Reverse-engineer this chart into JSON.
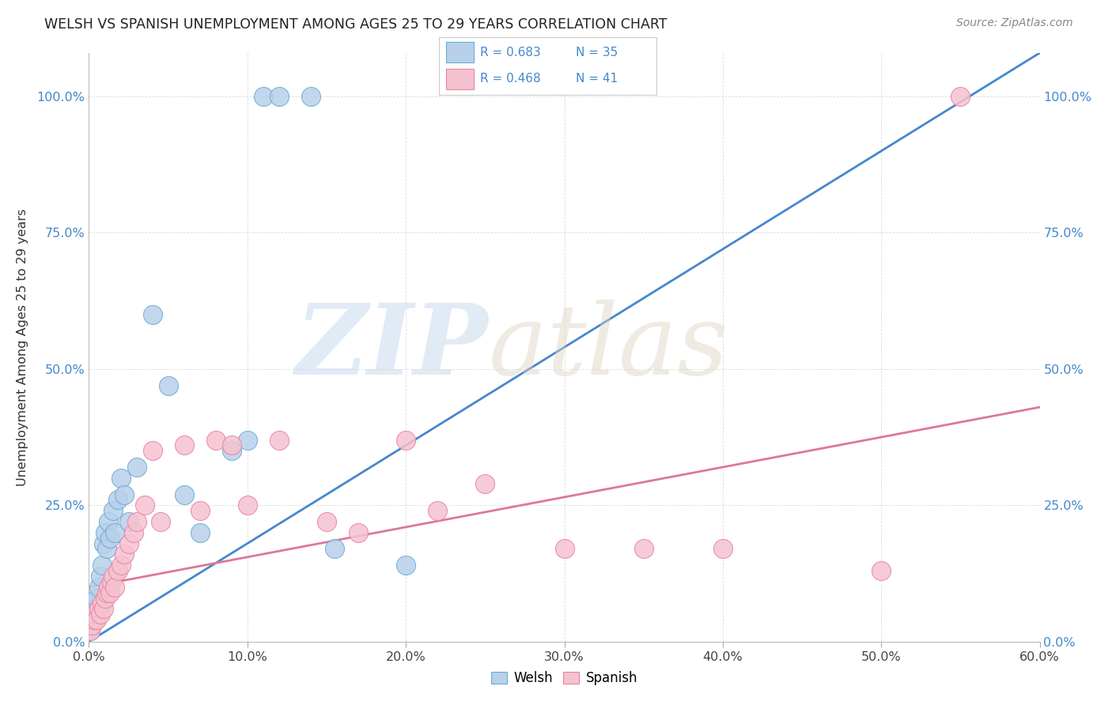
{
  "title": "WELSH VS SPANISH UNEMPLOYMENT AMONG AGES 25 TO 29 YEARS CORRELATION CHART",
  "source": "Source: ZipAtlas.com",
  "ylabel": "Unemployment Among Ages 25 to 29 years",
  "xlim": [
    0.0,
    0.6
  ],
  "ylim": [
    0.0,
    1.08
  ],
  "x_tick_vals": [
    0.0,
    0.1,
    0.2,
    0.3,
    0.4,
    0.5,
    0.6
  ],
  "x_tick_labels": [
    "0.0%",
    "10.0%",
    "20.0%",
    "30.0%",
    "40.0%",
    "50.0%",
    "60.0%"
  ],
  "y_tick_vals": [
    0.0,
    0.25,
    0.5,
    0.75,
    1.0
  ],
  "y_tick_labels": [
    "0.0%",
    "25.0%",
    "50.0%",
    "75.0%",
    "100.0%"
  ],
  "welsh_R": 0.683,
  "welsh_N": 35,
  "spanish_R": 0.468,
  "spanish_N": 41,
  "welsh_dot_color": "#b8d0ea",
  "welsh_edge_color": "#6aaad4",
  "spanish_dot_color": "#f5c2d0",
  "spanish_edge_color": "#e882a4",
  "welsh_line_color": "#4488cc",
  "spanish_line_color": "#dd7799",
  "legend_color": "#4488cc",
  "title_color": "#222222",
  "source_color": "#888888",
  "background_color": "#ffffff",
  "grid_color": "#dddddd",
  "welsh_line_x0": 0.0,
  "welsh_line_y0": 0.0,
  "welsh_line_x1": 0.6,
  "welsh_line_y1": 1.08,
  "spanish_line_x0": 0.0,
  "spanish_line_y0": 0.1,
  "spanish_line_x1": 0.6,
  "spanish_line_y1": 0.43,
  "welsh_x": [
    0.001,
    0.002,
    0.003,
    0.003,
    0.004,
    0.004,
    0.005,
    0.005,
    0.006,
    0.006,
    0.007,
    0.008,
    0.009,
    0.01,
    0.011,
    0.012,
    0.013,
    0.015,
    0.016,
    0.018,
    0.02,
    0.022,
    0.025,
    0.03,
    0.04,
    0.05,
    0.06,
    0.07,
    0.09,
    0.1,
    0.11,
    0.12,
    0.14,
    0.155,
    0.2
  ],
  "welsh_y": [
    0.02,
    0.03,
    0.05,
    0.07,
    0.04,
    0.06,
    0.05,
    0.08,
    0.06,
    0.1,
    0.12,
    0.14,
    0.18,
    0.2,
    0.17,
    0.22,
    0.19,
    0.24,
    0.2,
    0.26,
    0.3,
    0.27,
    0.22,
    0.32,
    0.6,
    0.47,
    0.27,
    0.2,
    0.35,
    0.37,
    1.0,
    1.0,
    1.0,
    0.17,
    0.14
  ],
  "spanish_x": [
    0.001,
    0.002,
    0.003,
    0.004,
    0.005,
    0.006,
    0.007,
    0.008,
    0.009,
    0.01,
    0.011,
    0.012,
    0.013,
    0.014,
    0.015,
    0.016,
    0.018,
    0.02,
    0.022,
    0.025,
    0.028,
    0.03,
    0.035,
    0.04,
    0.045,
    0.06,
    0.07,
    0.08,
    0.09,
    0.1,
    0.12,
    0.15,
    0.17,
    0.2,
    0.22,
    0.25,
    0.3,
    0.35,
    0.4,
    0.5,
    0.55
  ],
  "spanish_y": [
    0.02,
    0.03,
    0.04,
    0.05,
    0.04,
    0.06,
    0.05,
    0.07,
    0.06,
    0.08,
    0.09,
    0.1,
    0.09,
    0.11,
    0.12,
    0.1,
    0.13,
    0.14,
    0.16,
    0.18,
    0.2,
    0.22,
    0.25,
    0.35,
    0.22,
    0.36,
    0.24,
    0.37,
    0.36,
    0.25,
    0.37,
    0.22,
    0.2,
    0.37,
    0.24,
    0.29,
    0.17,
    0.17,
    0.17,
    0.13,
    1.0
  ]
}
